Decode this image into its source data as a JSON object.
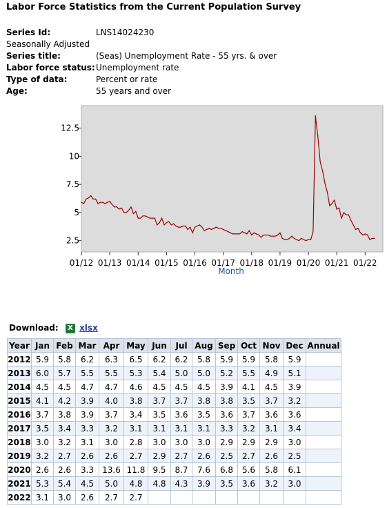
{
  "page_title": "Labor Force Statistics from the Current Population Survey",
  "meta": {
    "series_id_label": "Series Id:",
    "series_id": "LNS14024230",
    "adjustment": "Seasonally Adjusted",
    "series_title_label": "Series title:",
    "series_title": "(Seas) Unemployment Rate - 55 yrs. & over",
    "status_label": "Labor force status:",
    "status": "Unemployment rate",
    "type_label": "Type of data:",
    "type": "Percent or rate",
    "age_label": "Age:",
    "age": "55 years and over"
  },
  "chart_data": {
    "type": "line",
    "xlabel": "Month",
    "ylabel": "",
    "ylim": [
      1.5,
      14.5
    ],
    "yticks": [
      2.5,
      5,
      7.5,
      10,
      12.5
    ],
    "ytick_labels": [
      "2.5",
      "5",
      "7.5",
      "10",
      "12.5"
    ],
    "xticks": [
      "01/12",
      "01/13",
      "01/14",
      "01/15",
      "01/16",
      "01/17",
      "01/18",
      "01/19",
      "01/20",
      "01/21",
      "01/22"
    ],
    "grid": false,
    "line_color": "#990000",
    "background": "#dcdcdc",
    "series": [
      {
        "start": "2012-01",
        "values": [
          5.9,
          5.8,
          6.2,
          6.3,
          6.5,
          6.2,
          6.2,
          5.8,
          5.9,
          5.9,
          5.8,
          5.9,
          6.0,
          5.7,
          5.5,
          5.5,
          5.3,
          5.4,
          5.0,
          5.0,
          5.2,
          5.5,
          4.9,
          5.1,
          4.5,
          4.5,
          4.7,
          4.7,
          4.6,
          4.5,
          4.5,
          4.5,
          3.9,
          4.1,
          4.5,
          3.9,
          4.1,
          4.2,
          3.9,
          4.0,
          3.8,
          3.7,
          3.7,
          3.8,
          3.8,
          3.5,
          3.7,
          3.2,
          3.7,
          3.8,
          3.9,
          3.7,
          3.4,
          3.5,
          3.6,
          3.5,
          3.6,
          3.7,
          3.6,
          3.6,
          3.5,
          3.4,
          3.3,
          3.2,
          3.1,
          3.1,
          3.1,
          3.1,
          3.3,
          3.2,
          3.1,
          3.4,
          3.0,
          3.2,
          3.1,
          3.0,
          2.8,
          3.0,
          3.0,
          3.0,
          2.9,
          2.9,
          2.9,
          3.0,
          3.2,
          2.7,
          2.6,
          2.6,
          2.7,
          2.9,
          2.7,
          2.6,
          2.5,
          2.7,
          2.6,
          2.5,
          2.6,
          2.6,
          3.3,
          13.6,
          11.8,
          9.5,
          8.7,
          7.6,
          6.8,
          5.6,
          5.8,
          6.1,
          5.3,
          5.4,
          4.5,
          5.0,
          4.8,
          4.8,
          4.3,
          3.9,
          3.5,
          3.6,
          3.2,
          3.0,
          3.1,
          3.0,
          2.6,
          2.7,
          2.7
        ]
      }
    ]
  },
  "download": {
    "label": "Download:",
    "icon": "excel-icon",
    "link": "xlsx"
  },
  "table": {
    "headers": [
      "Year",
      "Jan",
      "Feb",
      "Mar",
      "Apr",
      "May",
      "Jun",
      "Jul",
      "Aug",
      "Sep",
      "Oct",
      "Nov",
      "Dec",
      "Annual"
    ],
    "rows": [
      [
        "2012",
        "5.9",
        "5.8",
        "6.2",
        "6.3",
        "6.5",
        "6.2",
        "6.2",
        "5.8",
        "5.9",
        "5.9",
        "5.8",
        "5.9",
        ""
      ],
      [
        "2013",
        "6.0",
        "5.7",
        "5.5",
        "5.5",
        "5.3",
        "5.4",
        "5.0",
        "5.0",
        "5.2",
        "5.5",
        "4.9",
        "5.1",
        ""
      ],
      [
        "2014",
        "4.5",
        "4.5",
        "4.7",
        "4.7",
        "4.6",
        "4.5",
        "4.5",
        "4.5",
        "3.9",
        "4.1",
        "4.5",
        "3.9",
        ""
      ],
      [
        "2015",
        "4.1",
        "4.2",
        "3.9",
        "4.0",
        "3.8",
        "3.7",
        "3.7",
        "3.8",
        "3.8",
        "3.5",
        "3.7",
        "3.2",
        ""
      ],
      [
        "2016",
        "3.7",
        "3.8",
        "3.9",
        "3.7",
        "3.4",
        "3.5",
        "3.6",
        "3.5",
        "3.6",
        "3.7",
        "3.6",
        "3.6",
        ""
      ],
      [
        "2017",
        "3.5",
        "3.4",
        "3.3",
        "3.2",
        "3.1",
        "3.1",
        "3.1",
        "3.1",
        "3.3",
        "3.2",
        "3.1",
        "3.4",
        ""
      ],
      [
        "2018",
        "3.0",
        "3.2",
        "3.1",
        "3.0",
        "2.8",
        "3.0",
        "3.0",
        "3.0",
        "2.9",
        "2.9",
        "2.9",
        "3.0",
        ""
      ],
      [
        "2019",
        "3.2",
        "2.7",
        "2.6",
        "2.6",
        "2.7",
        "2.9",
        "2.7",
        "2.6",
        "2.5",
        "2.7",
        "2.6",
        "2.5",
        ""
      ],
      [
        "2020",
        "2.6",
        "2.6",
        "3.3",
        "13.6",
        "11.8",
        "9.5",
        "8.7",
        "7.6",
        "6.8",
        "5.6",
        "5.8",
        "6.1",
        ""
      ],
      [
        "2021",
        "5.3",
        "5.4",
        "4.5",
        "5.0",
        "4.8",
        "4.8",
        "4.3",
        "3.9",
        "3.5",
        "3.6",
        "3.2",
        "3.0",
        ""
      ],
      [
        "2022",
        "3.1",
        "3.0",
        "2.6",
        "2.7",
        "2.7",
        "",
        "",
        "",
        "",
        "",
        "",
        "",
        ""
      ]
    ]
  }
}
